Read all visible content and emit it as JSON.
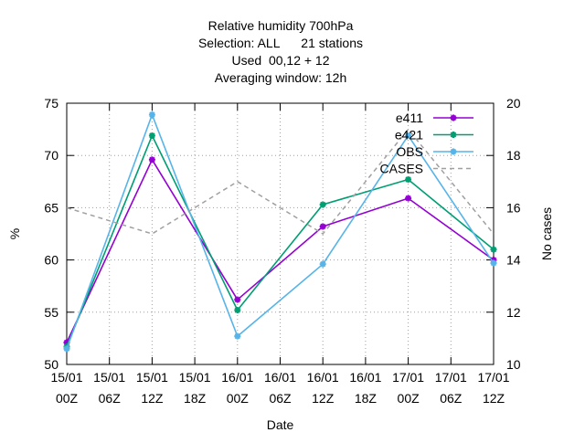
{
  "chart_data": {
    "type": "line",
    "title_lines": [
      "Relative humidity 700hPa",
      "Selection: ALL      21 stations",
      "Used  00,12 + 12",
      "Averaging window: 12h"
    ],
    "xlabel": "Date",
    "ylabel": "%",
    "y2label": "No cases",
    "x_categories": [
      [
        "15/01",
        "00Z"
      ],
      [
        "15/01",
        "06Z"
      ],
      [
        "15/01",
        "12Z"
      ],
      [
        "15/01",
        "18Z"
      ],
      [
        "16/01",
        "00Z"
      ],
      [
        "16/01",
        "06Z"
      ],
      [
        "16/01",
        "12Z"
      ],
      [
        "16/01",
        "18Z"
      ],
      [
        "17/01",
        "00Z"
      ],
      [
        "17/01",
        "06Z"
      ],
      [
        "17/01",
        "12Z"
      ]
    ],
    "ylim": [
      50,
      75
    ],
    "yticks": [
      50,
      55,
      60,
      65,
      70,
      75
    ],
    "y2lim": [
      10,
      20
    ],
    "y2ticks": [
      10,
      12,
      14,
      16,
      18,
      20
    ],
    "grid": true,
    "legend_position": "top-right",
    "series": [
      {
        "name": "e411",
        "axis": "y",
        "color": "#9400d3",
        "style": "solid",
        "marker": true,
        "x_index": [
          0,
          2,
          4,
          6,
          8,
          10
        ],
        "values": [
          52.1,
          69.6,
          56.2,
          63.2,
          65.9,
          60.0
        ]
      },
      {
        "name": "e421",
        "axis": "y",
        "color": "#009e73",
        "style": "solid",
        "marker": true,
        "x_index": [
          0,
          2,
          4,
          6,
          8,
          10
        ],
        "values": [
          51.7,
          71.9,
          55.2,
          65.3,
          67.7,
          61.0
        ]
      },
      {
        "name": "OBS",
        "axis": "y",
        "color": "#56b4e9",
        "style": "solid",
        "marker": true,
        "x_index": [
          0,
          2,
          4,
          6,
          8,
          10
        ],
        "values": [
          51.5,
          73.9,
          52.7,
          59.6,
          71.9,
          59.7
        ]
      },
      {
        "name": "CASES",
        "axis": "y2",
        "color": "#a0a0a0",
        "style": "dashed",
        "marker": false,
        "x_index": [
          0,
          2,
          4,
          6,
          8,
          10
        ],
        "values": [
          16,
          15,
          17,
          15,
          19,
          15
        ]
      }
    ]
  }
}
